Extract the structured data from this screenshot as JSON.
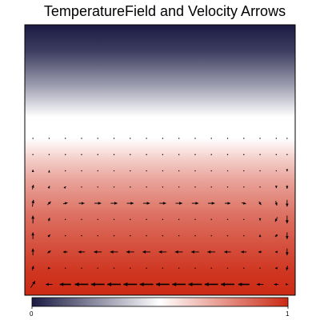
{
  "chart_data": {
    "type": "heatmap",
    "title": "TemperatureField and Velocity Arrows",
    "xlabel": "",
    "ylabel": "",
    "field": "temperature",
    "overlay": "velocity-arrows",
    "colormap": {
      "name": "navy-white-red",
      "stops": [
        {
          "value": 0.0,
          "color": "#1a1a44"
        },
        {
          "value": 0.5,
          "color": "#ffffff"
        },
        {
          "value": 1.0,
          "color": "#cc2a14"
        }
      ]
    },
    "temperature_profile": {
      "y": [
        0.0,
        0.09,
        0.2,
        0.3,
        0.42,
        0.5,
        0.58,
        0.66,
        0.78,
        0.9,
        1.0
      ],
      "t": [
        1.0,
        0.97,
        0.9,
        0.83,
        0.72,
        0.62,
        0.5,
        0.5,
        0.28,
        0.08,
        0.0
      ]
    },
    "colorbar": {
      "min": 0,
      "max": 1,
      "tick_labels": [
        "0",
        "1"
      ]
    },
    "velocity_arrows": {
      "description_grid_x": [
        0.03,
        0.09,
        0.15,
        0.21,
        0.27,
        0.33,
        0.39,
        0.45,
        0.51,
        0.57,
        0.63,
        0.69,
        0.75,
        0.81,
        0.87,
        0.93,
        0.97
      ],
      "rows": [
        {
          "y": 0.04,
          "u": [
            0.2,
            -0.3,
            -0.5,
            -0.6,
            -0.6,
            -0.6,
            -0.6,
            -0.6,
            -0.6,
            -0.6,
            -0.6,
            -0.6,
            -0.6,
            -0.5,
            -0.3,
            -0.2,
            0.1
          ],
          "v": [
            0.3,
            0.0,
            0.0,
            0.0,
            0.0,
            0.0,
            0.0,
            0.0,
            0.0,
            0.0,
            0.0,
            0.0,
            0.0,
            0.0,
            0.0,
            0.0,
            0.0
          ]
        },
        {
          "y": 0.1,
          "u": [
            0.05,
            0.1,
            0.0,
            0.0,
            0.0,
            0.0,
            0.0,
            0.0,
            0.0,
            0.0,
            0.0,
            0.0,
            0.0,
            0.0,
            0.0,
            -0.1,
            -0.05
          ],
          "v": [
            0.2,
            0.0,
            0.0,
            0.0,
            0.0,
            0.0,
            0.0,
            0.0,
            0.0,
            0.0,
            0.0,
            0.0,
            0.0,
            0.0,
            0.0,
            0.0,
            -0.2
          ]
        },
        {
          "y": 0.16,
          "u": [
            0.0,
            0.15,
            -0.2,
            -0.3,
            -0.35,
            -0.35,
            -0.35,
            -0.35,
            -0.35,
            -0.35,
            -0.35,
            -0.35,
            -0.3,
            -0.25,
            -0.15,
            -0.1,
            0.0
          ],
          "v": [
            0.3,
            0.1,
            0.0,
            0.0,
            0.0,
            0.0,
            0.0,
            0.0,
            0.0,
            0.0,
            0.0,
            0.0,
            0.0,
            0.0,
            0.0,
            0.0,
            -0.3
          ]
        },
        {
          "y": 0.22,
          "u": [
            0.0,
            0.1,
            0.0,
            0.0,
            0.0,
            0.0,
            0.0,
            0.0,
            0.0,
            0.0,
            0.0,
            0.0,
            0.0,
            0.0,
            0.0,
            -0.1,
            0.0
          ],
          "v": [
            0.3,
            0.1,
            0.0,
            0.0,
            0.0,
            0.0,
            0.0,
            0.0,
            0.0,
            0.0,
            0.0,
            0.0,
            0.0,
            0.0,
            0.1,
            -0.1,
            -0.3
          ]
        },
        {
          "y": 0.28,
          "u": [
            0.0,
            0.05,
            0.0,
            0.0,
            0.0,
            0.0,
            0.0,
            0.0,
            0.0,
            0.0,
            0.0,
            0.0,
            0.0,
            0.0,
            0.0,
            -0.1,
            0.0
          ],
          "v": [
            0.35,
            0.15,
            0.0,
            0.0,
            0.0,
            0.0,
            0.0,
            0.0,
            0.0,
            0.0,
            0.0,
            0.0,
            0.0,
            0.0,
            -0.1,
            -0.2,
            -0.35
          ]
        },
        {
          "y": 0.34,
          "u": [
            0.05,
            0.15,
            0.2,
            0.25,
            0.3,
            0.3,
            0.3,
            0.3,
            0.3,
            0.3,
            0.3,
            0.3,
            0.25,
            0.2,
            0.1,
            0.05,
            0.0
          ],
          "v": [
            0.3,
            0.15,
            0.05,
            0.0,
            0.0,
            0.0,
            0.0,
            0.0,
            0.0,
            0.0,
            0.0,
            0.0,
            0.0,
            -0.05,
            -0.15,
            -0.2,
            -0.3
          ]
        },
        {
          "y": 0.4,
          "u": [
            0.05,
            0.05,
            0.05,
            0.0,
            0.0,
            0.0,
            0.0,
            0.0,
            0.0,
            0.0,
            0.0,
            0.0,
            0.0,
            0.0,
            0.0,
            0.0,
            0.0
          ],
          "v": [
            0.2,
            0.1,
            0.05,
            0.0,
            0.0,
            0.0,
            0.0,
            0.0,
            0.0,
            0.0,
            0.0,
            0.0,
            0.0,
            0.0,
            0.0,
            -0.1,
            -0.15
          ]
        },
        {
          "y": 0.46,
          "u": [
            0.0,
            0.0,
            0.0,
            0.0,
            0.0,
            0.0,
            0.0,
            0.0,
            0.0,
            0.0,
            0.0,
            0.0,
            0.0,
            0.0,
            0.0,
            0.0,
            0.0
          ],
          "v": [
            0.1,
            0.05,
            0.0,
            0.0,
            0.0,
            0.0,
            0.0,
            0.0,
            0.0,
            0.0,
            0.0,
            0.0,
            0.0,
            0.0,
            0.0,
            0.0,
            -0.05
          ]
        },
        {
          "y": 0.52,
          "u": [
            0.0,
            0.0,
            0.0,
            0.0,
            0.0,
            0.0,
            0.0,
            0.0,
            0.0,
            0.0,
            0.0,
            0.0,
            0.0,
            0.0,
            0.0,
            0.0,
            0.0
          ],
          "v": [
            0.0,
            0.0,
            0.0,
            0.0,
            0.0,
            0.0,
            0.0,
            0.0,
            0.0,
            0.0,
            0.0,
            0.0,
            0.0,
            0.0,
            0.0,
            0.0,
            0.0
          ]
        },
        {
          "y": 0.58,
          "u": [
            0.0,
            0.0,
            0.0,
            0.0,
            0.0,
            0.0,
            0.0,
            0.0,
            0.0,
            0.0,
            0.0,
            0.0,
            0.0,
            0.0,
            0.0,
            0.0,
            0.0
          ],
          "v": [
            0.0,
            0.0,
            0.0,
            0.0,
            0.0,
            0.0,
            0.0,
            0.0,
            0.0,
            0.0,
            0.0,
            0.0,
            0.0,
            0.0,
            0.0,
            0.0,
            0.0
          ]
        }
      ]
    }
  }
}
